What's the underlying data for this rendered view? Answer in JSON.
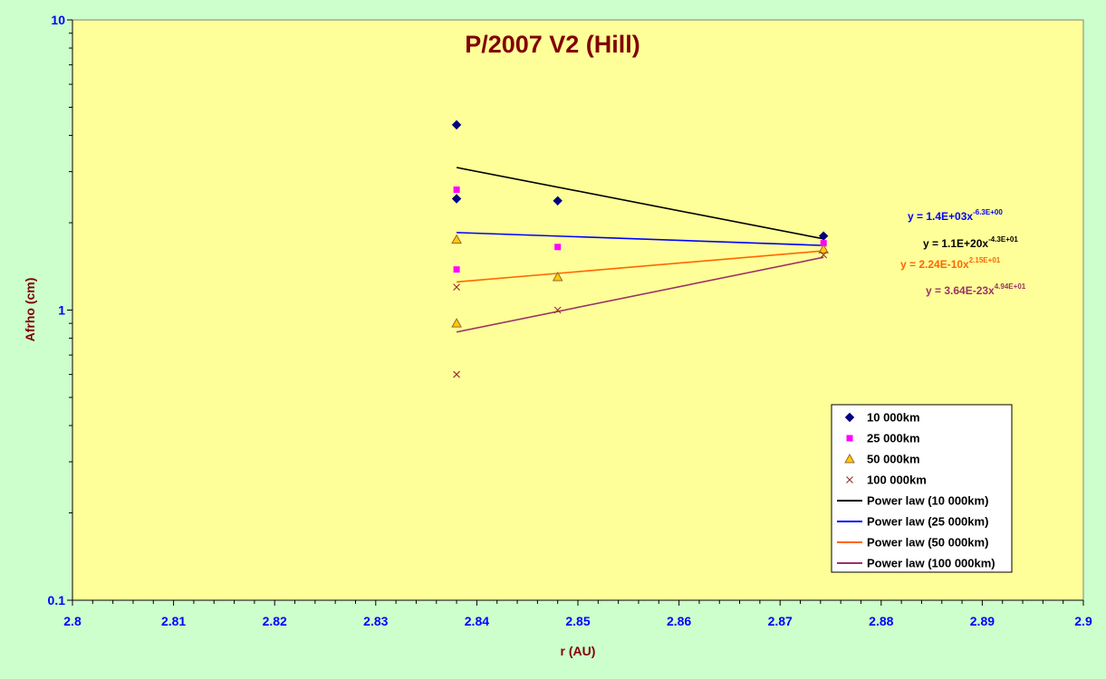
{
  "colors": {
    "outer_bg": "#ccffcc",
    "plot_bg": "#ffff99",
    "title": "#800000",
    "axis_label": "#800000",
    "tick_label": "#0000ff"
  },
  "chart_data": {
    "type": "scatter",
    "title": "P/2007 V2 (Hill)",
    "xlabel": "r (AU)",
    "ylabel": "Afrho (cm)",
    "xlim": [
      2.8,
      2.9
    ],
    "ylim": [
      0.1,
      10
    ],
    "y_scale": "log",
    "x_ticks": [
      "2.8",
      "2.81",
      "2.82",
      "2.83",
      "2.84",
      "2.85",
      "2.86",
      "2.87",
      "2.88",
      "2.89",
      "2.9"
    ],
    "y_ticks": [
      "0.1",
      "1",
      "10"
    ],
    "grid": false,
    "legend_position": "bottom-right",
    "series": [
      {
        "name": "10 000km",
        "marker": "diamond",
        "color": "#000080",
        "x": [
          2.838,
          2.838,
          2.848,
          2.8743
        ],
        "y": [
          4.35,
          2.42,
          2.38,
          1.8
        ]
      },
      {
        "name": "25 000km",
        "marker": "square",
        "color": "#ff00ff",
        "x": [
          2.838,
          2.838,
          2.848,
          2.8743
        ],
        "y": [
          2.6,
          1.38,
          1.65,
          1.7
        ]
      },
      {
        "name": "50 000km",
        "marker": "triangle",
        "color": "#ffcc00",
        "x": [
          2.838,
          2.838,
          2.848,
          2.8743
        ],
        "y": [
          1.75,
          0.9,
          1.3,
          1.62
        ]
      },
      {
        "name": "100 000km",
        "marker": "x",
        "color": "#993333",
        "x": [
          2.838,
          2.838,
          2.848,
          2.8743
        ],
        "y": [
          1.2,
          0.6,
          1.0,
          1.55
        ]
      }
    ],
    "trendlines": [
      {
        "name": "Power law (10 000km)",
        "color": "#000000",
        "x": [
          2.838,
          2.8743
        ],
        "y": [
          3.1,
          1.76
        ]
      },
      {
        "name": "Power law (25 000km)",
        "color": "#0000ff",
        "x": [
          2.838,
          2.8743
        ],
        "y": [
          1.85,
          1.67
        ]
      },
      {
        "name": "Power law (50 000km)",
        "color": "#ff6600",
        "x": [
          2.838,
          2.8743
        ],
        "y": [
          1.25,
          1.6
        ]
      },
      {
        "name": "Power law (100 000km)",
        "color": "#993366",
        "x": [
          2.838,
          2.8743
        ],
        "y": [
          0.84,
          1.52
        ]
      }
    ],
    "equations": [
      {
        "base": "y = 1.4E+03x",
        "exp": "-6.3E+00",
        "color": "#0000ff",
        "pos": "eq1"
      },
      {
        "base": "y = 1.1E+20x",
        "exp": "-4.3E+01",
        "color": "#000000",
        "pos": "eq2"
      },
      {
        "base": "y = 2.24E-10x",
        "exp": "2.15E+01",
        "color": "#ff6600",
        "pos": "eq3"
      },
      {
        "base": "y = 3.64E-23x",
        "exp": "4.94E+01",
        "color": "#993366",
        "pos": "eq4"
      }
    ]
  }
}
